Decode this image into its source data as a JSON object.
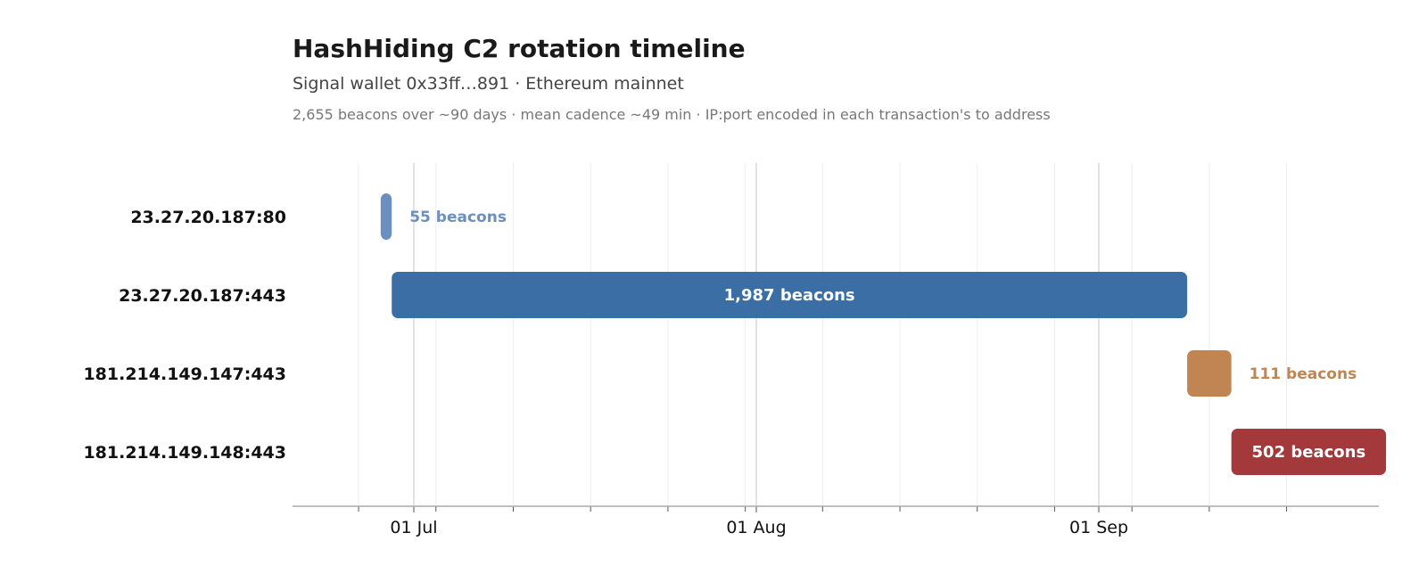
{
  "header": {
    "title": "HashHiding C2 rotation timeline",
    "subtitle": "Signal wallet 0x33ff…891  ·  Ethereum mainnet",
    "note": "2,655 beacons over ~90 days   ·   mean cadence ~49 min   ·   IP:port encoded in each transaction's to address"
  },
  "chart_data": {
    "type": "gantt",
    "title": "HashHiding C2 rotation timeline",
    "x_axis": {
      "type": "date",
      "range": [
        "2024-06-24",
        "2024-09-24"
      ],
      "major_ticks": [
        {
          "date": "2024-07-01",
          "label": "01 Jul"
        },
        {
          "date": "2024-08-01",
          "label": "01 Aug"
        },
        {
          "date": "2024-09-01",
          "label": "01 Sep"
        }
      ],
      "minor_tick_interval_days": 7,
      "grid": true
    },
    "series": [
      {
        "category": "23.27.20.187:80",
        "start": "2024-06-28",
        "end": "2024-06-29",
        "beacons": 55,
        "label": "55 beacons",
        "color": "#6b8fbf",
        "label_position": "outside"
      },
      {
        "category": "23.27.20.187:443",
        "start": "2024-06-29",
        "end": "2024-09-09",
        "beacons": 1987,
        "label": "1,987 beacons",
        "color": "#3b6ea5",
        "label_position": "inside"
      },
      {
        "category": "181.214.149.147:443",
        "start": "2024-09-09",
        "end": "2024-09-13",
        "beacons": 111,
        "label": "111 beacons",
        "color": "#c08552",
        "label_position": "outside"
      },
      {
        "category": "181.214.149.148:443",
        "start": "2024-09-13",
        "end": "2024-09-27",
        "beacons": 502,
        "label": "502 beacons",
        "color": "#a3393b",
        "label_position": "inside"
      }
    ]
  }
}
